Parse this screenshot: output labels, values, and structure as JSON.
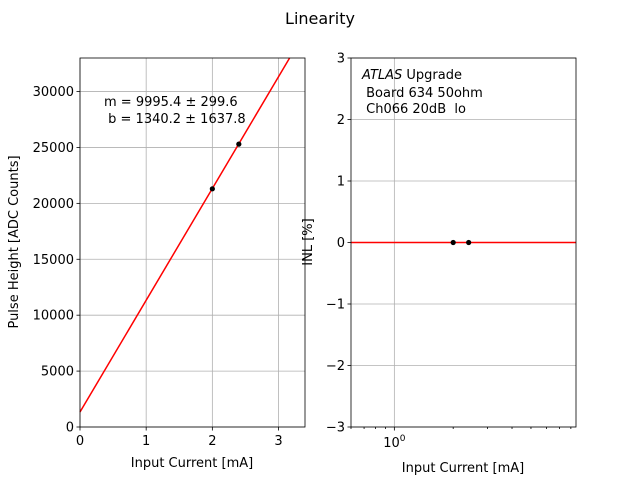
{
  "figure": {
    "title": "Linearity"
  },
  "chart_data": [
    {
      "type": "scatter",
      "panel": "left",
      "xlabel": "Input Current [mA]",
      "ylabel": "Pulse Height [ADC Counts]",
      "xlim": [
        0,
        3.4
      ],
      "ylim": [
        0,
        33000
      ],
      "xscale": "linear",
      "yscale": "linear",
      "grid": true,
      "xticks": [
        0,
        1,
        2,
        3
      ],
      "xtick_labels": [
        "0",
        "1",
        "2",
        "3"
      ],
      "yticks": [
        0,
        5000,
        10000,
        15000,
        20000,
        25000,
        30000
      ],
      "ytick_labels": [
        "0",
        "5000",
        "10000",
        "15000",
        "20000",
        "25000",
        "30000"
      ],
      "points": {
        "x": [
          2.0,
          2.4
        ],
        "y": [
          21300,
          25300
        ],
        "color": "#000000"
      },
      "fit_line": {
        "slope": 9995.4,
        "intercept": 1340.2,
        "color": "#ff0000"
      },
      "annotation": {
        "line1": "m = 9995.4 ± 299.6",
        "line2": " b = 1340.2 ± 1637.8"
      }
    },
    {
      "type": "scatter",
      "panel": "right",
      "xlabel": "Input Current [mA]",
      "ylabel": "INL [%]",
      "xlim": [
        0.6,
        8.5
      ],
      "ylim": [
        -3,
        3
      ],
      "xscale": "log",
      "yscale": "linear",
      "grid": true,
      "xticks": [
        1
      ],
      "xtick_labels": [
        "10^0"
      ],
      "xtick_base": "10",
      "xtick_exponent": "0",
      "yticks": [
        -3,
        -2,
        -1,
        0,
        1,
        2,
        3
      ],
      "ytick_labels": [
        "−3",
        "−2",
        "−1",
        "0",
        "1",
        "2",
        "3"
      ],
      "points": {
        "x": [
          2.0,
          2.4
        ],
        "y": [
          0,
          0
        ],
        "color": "#000000"
      },
      "reference_line": {
        "y": 0,
        "color": "#ff0000"
      },
      "annotation": {
        "atlas": "ATLAS",
        "upgrade": " Upgrade",
        "line2": " Board 634 50ohm",
        "line3": " Ch066 20dB  lo"
      }
    }
  ]
}
